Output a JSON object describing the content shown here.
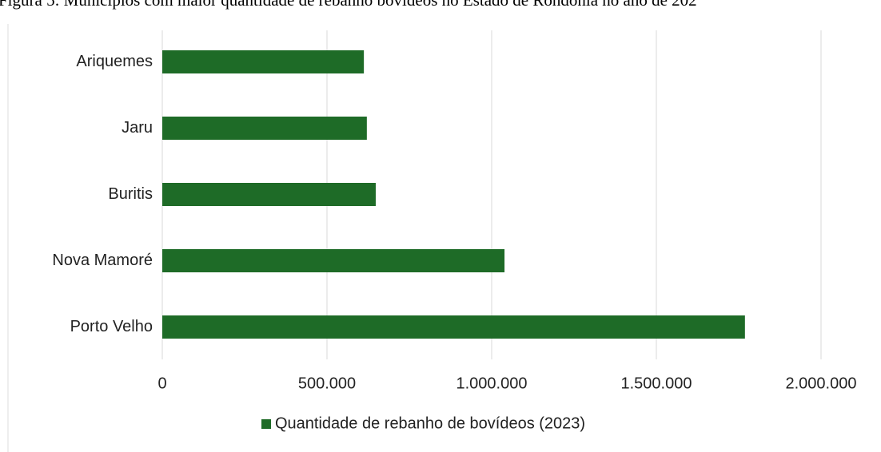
{
  "chart_data": {
    "type": "hbar",
    "title": "Figura 5: Municípios com maior quantidade de rebanho bovídeos no Estado de Rondônia no ano de 202",
    "categories": [
      "Ariquemes",
      "Jaru",
      "Buritis",
      "Nova Mamoré",
      "Porto Velho"
    ],
    "series": [
      {
        "name": "Quantidade de rebanho de bovídeos (2023)",
        "color": "#1e6b27",
        "values": [
          612000,
          621000,
          648000,
          1039000,
          1769000
        ]
      }
    ],
    "xlim": [
      0,
      2000000
    ],
    "xticks": [
      0,
      {
        "value": 500000,
        "label": "500.000"
      },
      {
        "value": 1000000,
        "label": "1.000.000"
      },
      {
        "value": 1500000,
        "label": "1.500.000"
      },
      {
        "value": 2000000,
        "label": "2.000.000"
      }
    ],
    "grid": true,
    "legend": "bottom"
  }
}
